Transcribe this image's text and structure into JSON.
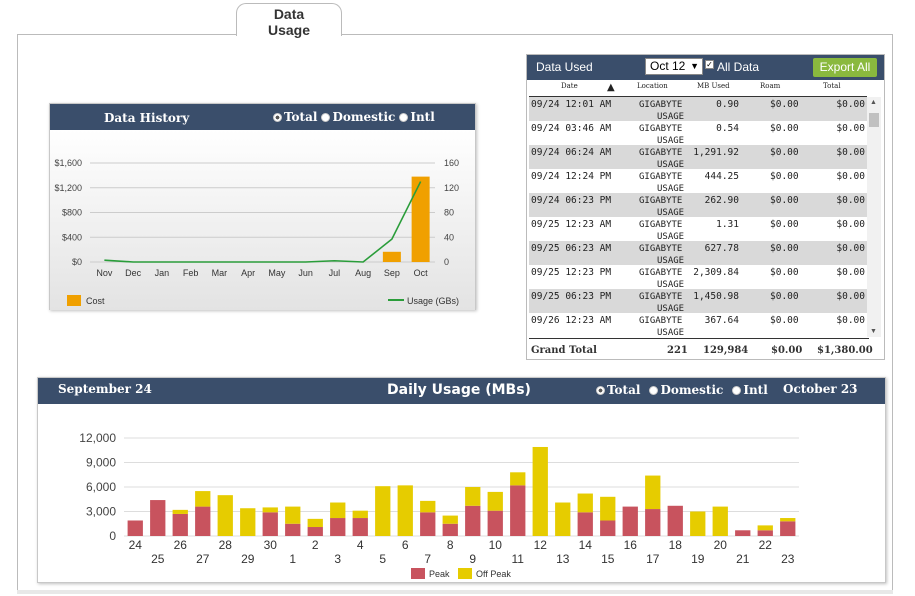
{
  "tab": {
    "line1": "Data",
    "line2": "Usage"
  },
  "history": {
    "title": "Data History",
    "radios": [
      "Total",
      "Domestic",
      "Intl"
    ],
    "selected": "Total",
    "legend_cost": "Cost",
    "legend_usage": "Usage (GBs)",
    "colors": {
      "bar": "#f0a000",
      "line": "#2a9d3a"
    }
  },
  "data_used": {
    "title": "Data Used",
    "select_value": "Oct 12",
    "all_data_label": "All Data",
    "all_data_checked": true,
    "export_label": "Export All",
    "columns": [
      "Date",
      "Location",
      "MB Used",
      "Roam",
      "Total"
    ],
    "rows": [
      {
        "date": "09/24 12:01 AM",
        "loc1": "GIGABYTE",
        "loc2": "USAGE",
        "mb": "0.90",
        "roam": "$0.00",
        "total": "$0.00"
      },
      {
        "date": "09/24 03:46 AM",
        "loc1": "GIGABYTE",
        "loc2": "USAGE",
        "mb": "0.54",
        "roam": "$0.00",
        "total": "$0.00"
      },
      {
        "date": "09/24 06:24 AM",
        "loc1": "GIGABYTE",
        "loc2": "USAGE",
        "mb": "1,291.92",
        "roam": "$0.00",
        "total": "$0.00"
      },
      {
        "date": "09/24 12:24 PM",
        "loc1": "GIGABYTE",
        "loc2": "USAGE",
        "mb": "444.25",
        "roam": "$0.00",
        "total": "$0.00"
      },
      {
        "date": "09/24 06:23 PM",
        "loc1": "GIGABYTE",
        "loc2": "USAGE",
        "mb": "262.90",
        "roam": "$0.00",
        "total": "$0.00"
      },
      {
        "date": "09/25 12:23 AM",
        "loc1": "GIGABYTE",
        "loc2": "USAGE",
        "mb": "1.31",
        "roam": "$0.00",
        "total": "$0.00"
      },
      {
        "date": "09/25 06:23 AM",
        "loc1": "GIGABYTE",
        "loc2": "USAGE",
        "mb": "627.78",
        "roam": "$0.00",
        "total": "$0.00"
      },
      {
        "date": "09/25 12:23 PM",
        "loc1": "GIGABYTE",
        "loc2": "USAGE",
        "mb": "2,309.84",
        "roam": "$0.00",
        "total": "$0.00"
      },
      {
        "date": "09/25 06:23 PM",
        "loc1": "GIGABYTE",
        "loc2": "USAGE",
        "mb": "1,450.98",
        "roam": "$0.00",
        "total": "$0.00"
      },
      {
        "date": "09/26 12:23 AM",
        "loc1": "GIGABYTE",
        "loc2": "USAGE",
        "mb": "367.64",
        "roam": "$0.00",
        "total": "$0.00"
      }
    ],
    "grand_total": {
      "label": "Grand Total",
      "count": "221",
      "mb": "129,984",
      "roam": "$0.00",
      "total": "$1,380.00"
    }
  },
  "daily": {
    "start_label": "September 24",
    "title": "Daily Usage (MBs)",
    "radios": [
      "Total",
      "Domestic",
      "Intl"
    ],
    "selected": "Total",
    "end_label": "October 23",
    "legend_peak": "Peak",
    "legend_offpeak": "Off Peak",
    "colors": {
      "peak": "#c8535e",
      "offpeak": "#e6cc00"
    }
  },
  "chart_data": [
    {
      "type": "bar+line",
      "title": "Data History",
      "categories": [
        "Nov",
        "Dec",
        "Jan",
        "Feb",
        "Mar",
        "Apr",
        "May",
        "Jun",
        "Jul",
        "Aug",
        "Sep",
        "Oct"
      ],
      "series": [
        {
          "name": "Cost",
          "type": "bar",
          "axis": "left",
          "values": [
            0,
            0,
            0,
            0,
            0,
            0,
            0,
            0,
            0,
            0,
            165,
            1380
          ]
        },
        {
          "name": "Usage (GBs)",
          "type": "line",
          "axis": "right",
          "values": [
            3,
            0,
            0,
            0,
            0,
            0,
            0,
            0,
            2,
            0,
            37,
            130
          ]
        }
      ],
      "y_left_ticks": [
        "$0",
        "$400",
        "$800",
        "$1,200",
        "$1,600"
      ],
      "y_left_lim": [
        0,
        1600
      ],
      "y_right_ticks": [
        "0",
        "40",
        "80",
        "120",
        "160"
      ],
      "y_right_lim": [
        0,
        160
      ],
      "grid": true
    },
    {
      "type": "bar",
      "stacked": true,
      "title": "Daily Usage (MBs)",
      "categories": [
        "24",
        "25",
        "26",
        "27",
        "28",
        "29",
        "30",
        "1",
        "2",
        "3",
        "4",
        "5",
        "6",
        "7",
        "8",
        "9",
        "10",
        "11",
        "12",
        "13",
        "14",
        "15",
        "16",
        "17",
        "18",
        "19",
        "20",
        "21",
        "22",
        "23"
      ],
      "series": [
        {
          "name": "Peak",
          "values": [
            1900,
            4400,
            2700,
            3600,
            0,
            0,
            2900,
            1500,
            1100,
            2200,
            2200,
            0,
            0,
            2900,
            1500,
            3700,
            3100,
            6200,
            0,
            0,
            2900,
            1900,
            3600,
            3300,
            3700,
            0,
            0,
            700,
            700,
            1800
          ]
        },
        {
          "name": "Off Peak",
          "values": [
            0,
            0,
            500,
            1900,
            5000,
            3400,
            600,
            2100,
            1000,
            1900,
            900,
            6100,
            6200,
            1400,
            1000,
            2300,
            2300,
            1600,
            10900,
            4100,
            2300,
            2900,
            0,
            4100,
            0,
            3000,
            3600,
            0,
            600,
            400
          ]
        }
      ],
      "y_ticks": [
        "0",
        "3,000",
        "6,000",
        "9,000",
        "12,000"
      ],
      "ylim": [
        0,
        12000
      ],
      "grid": true,
      "legend": "bottom"
    }
  ]
}
